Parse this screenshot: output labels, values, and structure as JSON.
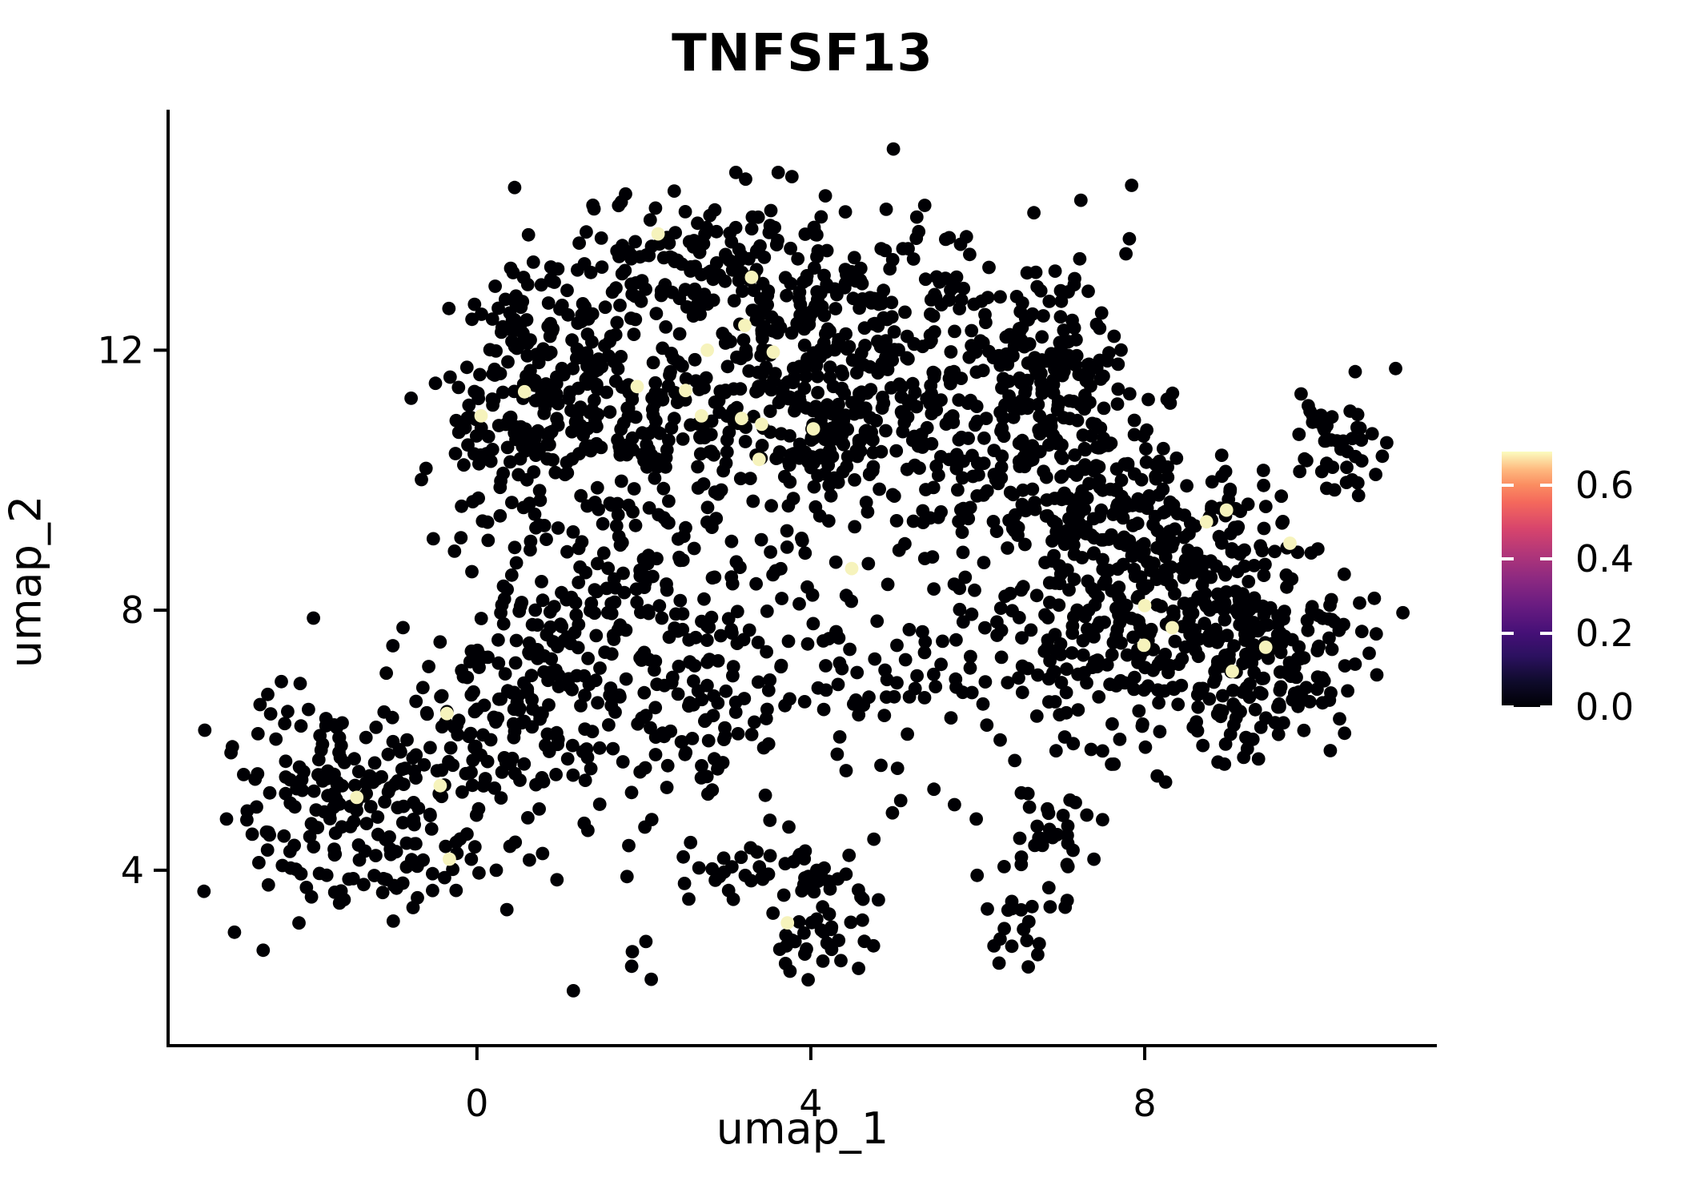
{
  "chart_data": {
    "type": "scatter",
    "subtype": "umap-feature-plot",
    "title": "TNFSF13",
    "xlabel": "umap_1",
    "ylabel": "umap_2",
    "x_ticks": [
      0,
      4,
      8
    ],
    "y_ticks": [
      4,
      8,
      12
    ],
    "xlim": [
      -3.7,
      11.5
    ],
    "ylim": [
      1.3,
      15.7
    ],
    "grid": false,
    "point_radius_px": 8.4,
    "point_color_low": "#000004",
    "point_color_high": "#F6F3BC",
    "background_color": "#ffffff",
    "axis_color": "#000000",
    "seed": 1337,
    "cluster_format": [
      "center_x",
      "center_y",
      "sd_x",
      "sd_y",
      "n_points"
    ],
    "clusters": [
      [
        0.99,
        12.1,
        0.57,
        0.68,
        130
      ],
      [
        2.91,
        13.32,
        0.86,
        0.61,
        160
      ],
      [
        5.01,
        12.46,
        0.86,
        0.68,
        140
      ],
      [
        6.73,
        11.48,
        0.57,
        0.61,
        90
      ],
      [
        4.44,
        10.74,
        0.67,
        0.68,
        170
      ],
      [
        3.86,
        11.85,
        0.57,
        0.55,
        70
      ],
      [
        1.95,
        10.99,
        0.72,
        0.55,
        90
      ],
      [
        0.52,
        10.5,
        0.53,
        0.92,
        110
      ],
      [
        2.91,
        9.39,
        1.43,
        1.11,
        110
      ],
      [
        1.95,
        8.78,
        0.53,
        1.17,
        90
      ],
      [
        0.8,
        7.55,
        0.53,
        0.74,
        60
      ],
      [
        2.43,
        6.69,
        0.86,
        0.74,
        110
      ],
      [
        5.01,
        6.94,
        1.05,
        0.86,
        80
      ],
      [
        7.5,
        9.39,
        0.76,
        0.74,
        150
      ],
      [
        8.64,
        8.53,
        0.76,
        0.86,
        160
      ],
      [
        7.5,
        7.43,
        0.86,
        0.86,
        150
      ],
      [
        9.12,
        7.06,
        0.67,
        0.61,
        100
      ],
      [
        7.02,
        11.6,
        0.57,
        0.98,
        100
      ],
      [
        6.16,
        10.01,
        0.76,
        0.98,
        80
      ],
      [
        10.36,
        10.68,
        0.29,
        0.43,
        45
      ],
      [
        9.79,
        7.55,
        0.53,
        0.74,
        70
      ],
      [
        -1.4,
        5.09,
        0.81,
        0.92,
        230
      ],
      [
        0.23,
        6.32,
        0.48,
        0.61,
        60
      ],
      [
        0.99,
        5.71,
        0.57,
        0.86,
        40
      ],
      [
        3.19,
        3.99,
        0.67,
        0.37,
        45
      ],
      [
        4.15,
        3.13,
        0.38,
        0.49,
        45
      ],
      [
        6.92,
        4.66,
        0.36,
        0.37,
        28
      ],
      [
        6.52,
        3.25,
        0.29,
        0.43,
        25
      ],
      [
        9.5,
        9.7,
        0.15,
        0.15,
        3
      ],
      [
        1.76,
        2.33,
        0.25,
        0.3,
        4
      ]
    ],
    "highlight_points": [
      [
        2.17,
        13.79
      ],
      [
        3.29,
        13.12
      ],
      [
        2.76,
        12.0
      ],
      [
        0.57,
        11.36
      ],
      [
        0.05,
        10.99
      ],
      [
        1.92,
        11.44
      ],
      [
        2.69,
        10.99
      ],
      [
        3.17,
        10.95
      ],
      [
        3.21,
        12.38
      ],
      [
        3.55,
        11.97
      ],
      [
        2.5,
        11.38
      ],
      [
        3.41,
        10.86
      ],
      [
        4.03,
        10.79
      ],
      [
        3.38,
        10.32
      ],
      [
        4.49,
        8.64
      ],
      [
        7.99,
        7.46
      ],
      [
        8.98,
        9.54
      ],
      [
        8.74,
        9.36
      ],
      [
        9.74,
        9.03
      ],
      [
        8.0,
        8.07
      ],
      [
        8.33,
        7.73
      ],
      [
        9.45,
        7.43
      ],
      [
        9.05,
        7.06
      ],
      [
        -1.44,
        5.12
      ],
      [
        -0.44,
        5.3
      ],
      [
        -0.36,
        6.41
      ],
      [
        -0.33,
        4.17
      ],
      [
        3.72,
        3.19
      ]
    ],
    "colorbar": {
      "min": 0.0,
      "max": 0.69,
      "tick_values": [
        "0.6",
        "0.4",
        "0.2",
        "0.0"
      ],
      "tick_numeric": [
        0.6,
        0.4,
        0.2,
        0.0
      ],
      "colormap": "magma",
      "stops": [
        [
          0.0,
          "#000004"
        ],
        [
          0.1,
          "#0F0B2C"
        ],
        [
          0.2,
          "#2C1160"
        ],
        [
          0.29,
          "#451077"
        ],
        [
          0.4,
          "#6A1C81"
        ],
        [
          0.5,
          "#8C2981"
        ],
        [
          0.6,
          "#B13679"
        ],
        [
          0.7,
          "#D8456C"
        ],
        [
          0.8,
          "#F4685C"
        ],
        [
          0.87,
          "#FB8D61"
        ],
        [
          0.93,
          "#FEB97F"
        ],
        [
          1.0,
          "#FBFCBF"
        ]
      ]
    }
  }
}
